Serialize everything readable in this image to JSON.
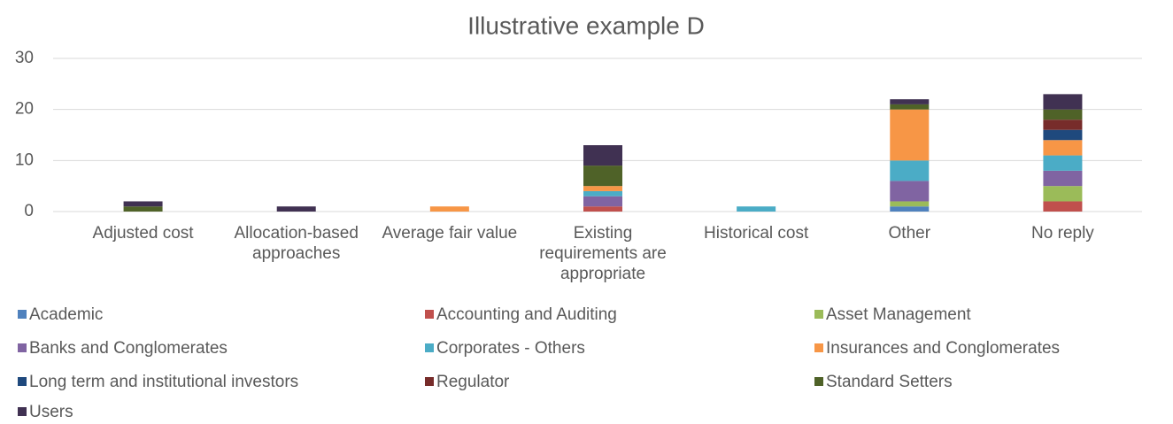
{
  "chart_data": {
    "type": "stacked_bar",
    "title": "Illustrative example D",
    "categories": [
      "Adjusted cost",
      "Allocation-based approaches",
      "Average fair value",
      "Existing requirements are appropriate",
      "Historical cost",
      "Other",
      "No reply"
    ],
    "series": [
      {
        "name": "Academic",
        "color": "#4f81bd",
        "values": [
          0,
          0,
          0,
          0,
          0,
          1,
          0
        ]
      },
      {
        "name": "Accounting and Auditing",
        "color": "#c0504d",
        "values": [
          0,
          0,
          0,
          1,
          0,
          0,
          2
        ]
      },
      {
        "name": "Asset Management",
        "color": "#9bbb59",
        "values": [
          0,
          0,
          0,
          0,
          0,
          1,
          3
        ]
      },
      {
        "name": "Banks and Conglomerates",
        "color": "#8064a2",
        "values": [
          0,
          0,
          0,
          2,
          0,
          4,
          3
        ]
      },
      {
        "name": "Corporates - Others",
        "color": "#4bacc6",
        "values": [
          0,
          0,
          0,
          1,
          1,
          4,
          3
        ]
      },
      {
        "name": "Insurances and Conglomerates",
        "color": "#f79646",
        "values": [
          0,
          0,
          1,
          1,
          0,
          10,
          3
        ]
      },
      {
        "name": "Long term and institutional investors",
        "color": "#1f497d",
        "values": [
          0,
          0,
          0,
          0,
          0,
          0,
          2
        ]
      },
      {
        "name": "Regulator",
        "color": "#772c2a",
        "values": [
          0,
          0,
          0,
          0,
          0,
          0,
          2
        ]
      },
      {
        "name": "Standard Setters",
        "color": "#4f6228",
        "values": [
          1,
          0,
          0,
          4,
          0,
          1,
          2
        ]
      },
      {
        "name": "Users",
        "color": "#403152",
        "values": [
          1,
          1,
          0,
          4,
          0,
          1,
          3
        ]
      }
    ],
    "ylim": [
      0,
      30
    ],
    "yticks": [
      0,
      10,
      20,
      30
    ],
    "grid": true,
    "legend": "bottom"
  }
}
